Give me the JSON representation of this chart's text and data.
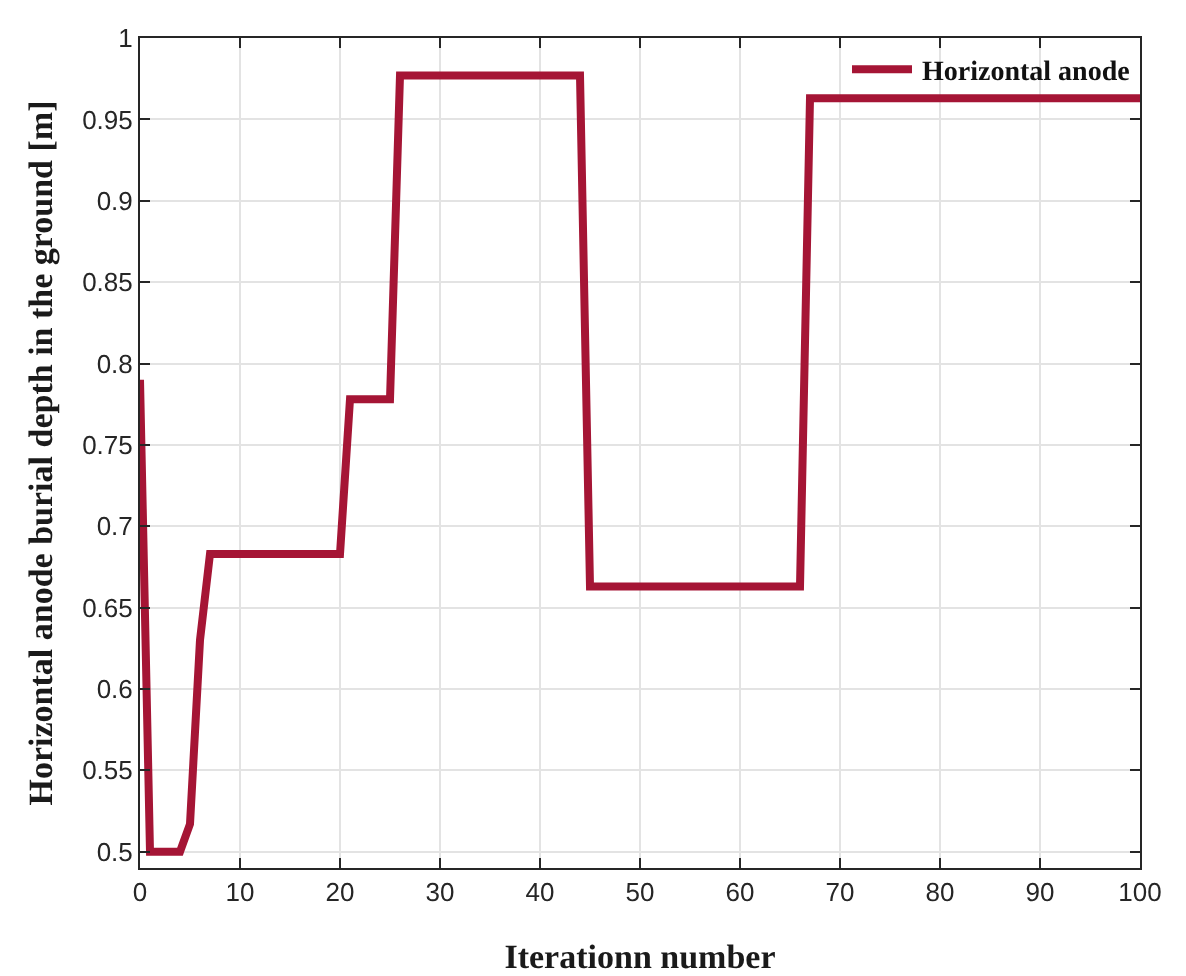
{
  "chart_data": {
    "type": "line",
    "xlabel": "Iterationn number",
    "ylabel": "Horizontal anode burial depth in the ground [m]",
    "x": [
      0,
      1,
      2,
      3,
      4,
      5,
      6,
      7,
      20,
      21,
      25,
      26,
      44,
      45,
      66,
      67,
      100
    ],
    "series": [
      {
        "name": "Horizontal anode",
        "color": "#a51535",
        "values": [
          0.79,
          0.5,
          0.5,
          0.5,
          0.5,
          0.517,
          0.63,
          0.683,
          0.683,
          0.778,
          0.778,
          0.977,
          0.977,
          0.663,
          0.663,
          0.963,
          0.963
        ]
      }
    ],
    "xlim": [
      0,
      100
    ],
    "xticks": [
      0,
      10,
      20,
      30,
      40,
      50,
      60,
      70,
      80,
      90,
      100
    ],
    "ylim": [
      0.49,
      1
    ],
    "yticks": [
      0.5,
      0.55,
      0.6,
      0.65,
      0.7,
      0.75,
      0.8,
      0.85,
      0.9,
      0.95,
      1
    ],
    "grid": true,
    "legend": "top right",
    "marker": "none",
    "line_style": "solid"
  }
}
